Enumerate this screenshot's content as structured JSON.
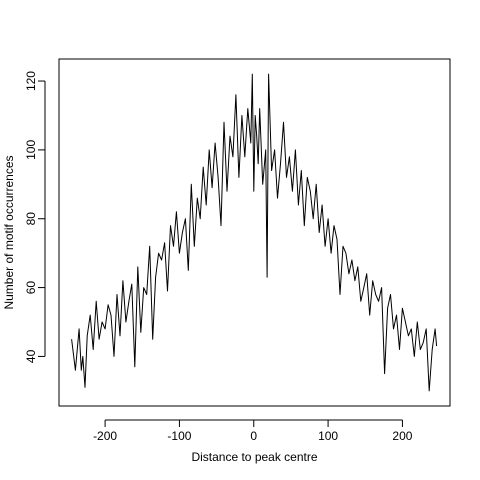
{
  "chart_data": {
    "type": "line",
    "title": "",
    "xlabel": "Distance to peak centre",
    "ylabel": "Number of motif occurrences",
    "xlim": [
      -262,
      264
    ],
    "ylim": [
      25.6,
      126.4
    ],
    "x_ticks": [
      -200,
      -100,
      0,
      100,
      200
    ],
    "y_ticks": [
      40,
      60,
      80,
      100,
      120
    ],
    "grid": false,
    "line_color": "#000000",
    "series": [
      {
        "x": [
          -245,
          -240,
          -235,
          -232,
          -230,
          -227,
          -224,
          -220,
          -216,
          -212,
          -208,
          -204,
          -200,
          -196,
          -192,
          -188,
          -184,
          -180,
          -176,
          -172,
          -168,
          -164,
          -160,
          -156,
          -152,
          -148,
          -144,
          -140,
          -136,
          -132,
          -128,
          -124,
          -120,
          -116,
          -112,
          -108,
          -104,
          -100,
          -96,
          -92,
          -88,
          -84,
          -80,
          -76,
          -72,
          -68,
          -64,
          -60,
          -56,
          -52,
          -48,
          -44,
          -40,
          -36,
          -32,
          -28,
          -24,
          -20,
          -16,
          -12,
          -8,
          -4,
          -2,
          0,
          2,
          4,
          6,
          8,
          12,
          16,
          18,
          20,
          24,
          28,
          32,
          36,
          40,
          44,
          48,
          52,
          56,
          60,
          64,
          68,
          72,
          76,
          80,
          84,
          88,
          92,
          96,
          100,
          104,
          108,
          112,
          116,
          120,
          124,
          128,
          132,
          136,
          140,
          144,
          148,
          152,
          156,
          160,
          164,
          168,
          172,
          176,
          180,
          184,
          188,
          192,
          196,
          200,
          204,
          208,
          212,
          216,
          220,
          224,
          228,
          232,
          236,
          240,
          244,
          246
        ],
        "y": [
          45,
          36,
          48,
          36,
          40,
          31,
          46,
          52,
          42,
          56,
          45,
          50,
          48,
          55,
          52,
          40,
          58,
          46,
          62,
          50,
          56,
          61,
          37,
          66,
          47,
          60,
          58,
          72,
          45,
          63,
          70,
          68,
          73,
          59,
          78,
          72,
          82,
          70,
          76,
          80,
          65,
          90,
          72,
          86,
          80,
          95,
          84,
          100,
          89,
          102,
          92,
          78,
          108,
          88,
          104,
          98,
          116,
          92,
          110,
          98,
          112,
          102,
          122,
          88,
          110,
          104,
          96,
          112,
          90,
          100,
          63,
          122,
          94,
          100,
          86,
          96,
          108,
          92,
          98,
          88,
          100,
          84,
          94,
          78,
          92,
          88,
          80,
          90,
          76,
          84,
          72,
          80,
          70,
          78,
          74,
          58,
          72,
          70,
          64,
          68,
          62,
          66,
          56,
          60,
          64,
          52,
          62,
          58,
          56,
          60,
          35,
          54,
          58,
          48,
          52,
          42,
          54,
          50,
          46,
          48,
          40,
          50,
          42,
          44,
          48,
          30,
          42,
          48,
          43
        ]
      }
    ]
  }
}
